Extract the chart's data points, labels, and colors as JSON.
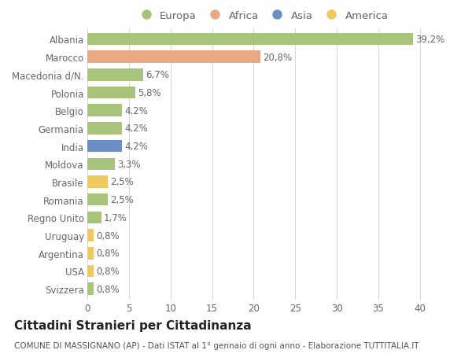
{
  "countries": [
    "Albania",
    "Marocco",
    "Macedonia d/N.",
    "Polonia",
    "Belgio",
    "Germania",
    "India",
    "Moldova",
    "Brasile",
    "Romania",
    "Regno Unito",
    "Uruguay",
    "Argentina",
    "USA",
    "Svizzera"
  ],
  "values": [
    39.2,
    20.8,
    6.7,
    5.8,
    4.2,
    4.2,
    4.2,
    3.3,
    2.5,
    2.5,
    1.7,
    0.8,
    0.8,
    0.8,
    0.8
  ],
  "labels": [
    "39,2%",
    "20,8%",
    "6,7%",
    "5,8%",
    "4,2%",
    "4,2%",
    "4,2%",
    "3,3%",
    "2,5%",
    "2,5%",
    "1,7%",
    "0,8%",
    "0,8%",
    "0,8%",
    "0,8%"
  ],
  "continents": [
    "Europa",
    "Africa",
    "Europa",
    "Europa",
    "Europa",
    "Europa",
    "Asia",
    "Europa",
    "America",
    "Europa",
    "Europa",
    "America",
    "America",
    "America",
    "Europa"
  ],
  "continent_colors": {
    "Europa": "#a8c47a",
    "Africa": "#e8a882",
    "Asia": "#6b8fc4",
    "America": "#f0c860"
  },
  "legend_order": [
    "Europa",
    "Africa",
    "Asia",
    "America"
  ],
  "title": "Cittadini Stranieri per Cittadinanza",
  "subtitle": "COMUNE DI MASSIGNANO (AP) - Dati ISTAT al 1° gennaio di ogni anno - Elaborazione TUTTITALIA.IT",
  "xlim": [
    0,
    42
  ],
  "xticks": [
    0,
    5,
    10,
    15,
    20,
    25,
    30,
    35,
    40
  ],
  "background_color": "#ffffff",
  "grid_color": "#d8d8d8",
  "bar_height": 0.68,
  "label_fontsize": 8.5,
  "tick_fontsize": 8.5,
  "title_fontsize": 11,
  "subtitle_fontsize": 7.5,
  "legend_fontsize": 9.5
}
